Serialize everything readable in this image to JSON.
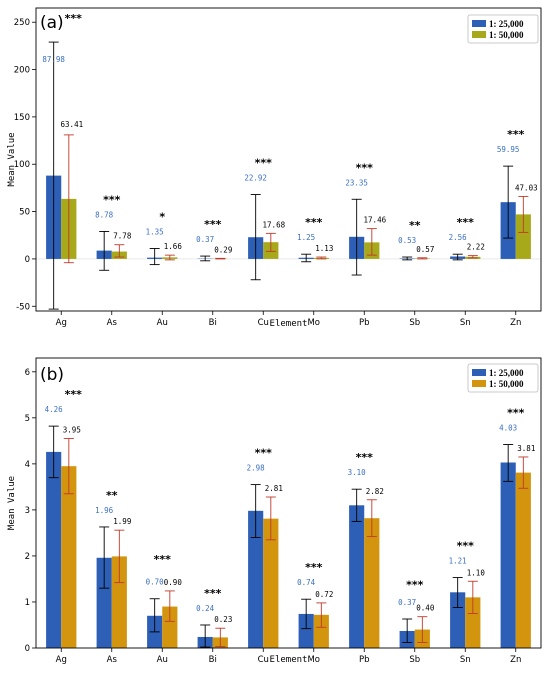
{
  "chart_data": [
    {
      "type": "bar",
      "panel_label": "(a)",
      "categories": [
        "Ag",
        "As",
        "Au",
        "Bi",
        "Cu",
        "Mo",
        "Pb",
        "Sb",
        "Sn",
        "Zn"
      ],
      "xlabel": "Element",
      "ylabel": "Mean Value",
      "ylim": [
        -55,
        265
      ],
      "yticks": [
        -50,
        0,
        50,
        100,
        150,
        200,
        250
      ],
      "series": [
        {
          "name": "1: 25,000",
          "color": "#2c5fb5",
          "values": [
            87.98,
            8.78,
            1.35,
            0.37,
            22.92,
            1.25,
            23.35,
            0.53,
            2.56,
            59.95
          ],
          "err_low": [
            -53,
            -12,
            -6,
            -2,
            -22,
            -3,
            -17,
            -1,
            -1,
            22
          ],
          "err_high": [
            229,
            29,
            11,
            3,
            68,
            5,
            63,
            2,
            5,
            98
          ],
          "labels": [
            "87.98",
            "8.78",
            "1.35",
            "0.37",
            "22.92",
            "1.25",
            "23.35",
            "0.53",
            "2.56",
            "59.95"
          ]
        },
        {
          "name": "1: 50,000",
          "color": "#a7a91a",
          "values": [
            63.41,
            7.78,
            1.66,
            0.29,
            17.68,
            1.13,
            17.46,
            0.57,
            2.22,
            47.03
          ],
          "err_low": [
            -4,
            2,
            -1,
            0,
            8,
            0,
            4,
            0,
            1,
            28
          ],
          "err_high": [
            131,
            15,
            4,
            0.6,
            27,
            2,
            32,
            1.2,
            3.5,
            66
          ],
          "labels": [
            "63.41",
            "7.78",
            "1.66",
            "0.29",
            "17.68",
            "1.13",
            "17.46",
            "0.57",
            "2.22",
            "47.03"
          ]
        }
      ],
      "significance": [
        "***",
        "***",
        "*",
        "***",
        "***",
        "***",
        "***",
        "**",
        "***",
        "***"
      ],
      "legend_position": "top-right"
    },
    {
      "type": "bar",
      "panel_label": "(b)",
      "categories": [
        "Ag",
        "As",
        "Au",
        "Bi",
        "Cu",
        "Mo",
        "Pb",
        "Sb",
        "Sn",
        "Zn"
      ],
      "xlabel": "Element",
      "ylabel": "Mean Value",
      "ylim": [
        0,
        6.3
      ],
      "yticks": [
        0,
        1,
        2,
        3,
        4,
        5,
        6
      ],
      "series": [
        {
          "name": "1: 25,000",
          "color": "#2c5fb5",
          "values": [
            4.26,
            1.96,
            0.7,
            0.24,
            2.98,
            0.74,
            3.1,
            0.37,
            1.21,
            4.03
          ],
          "err_low": [
            3.7,
            1.3,
            0.35,
            0.02,
            2.4,
            0.42,
            2.75,
            0.12,
            0.88,
            3.62
          ],
          "err_high": [
            4.82,
            2.63,
            1.07,
            0.5,
            3.55,
            1.06,
            3.45,
            0.63,
            1.53,
            4.42
          ],
          "labels": [
            "4.26",
            "1.96",
            "0.70",
            "0.24",
            "2.98",
            "0.74",
            "3.10",
            "0.37",
            "1.21",
            "4.03"
          ]
        },
        {
          "name": "1: 50,000",
          "color": "#d3950e",
          "values": [
            3.95,
            1.99,
            0.9,
            0.23,
            2.81,
            0.72,
            2.82,
            0.4,
            1.1,
            3.81
          ],
          "err_low": [
            3.35,
            1.42,
            0.58,
            0.03,
            2.35,
            0.45,
            2.42,
            0.12,
            0.75,
            3.47
          ],
          "err_high": [
            4.55,
            2.56,
            1.24,
            0.43,
            3.28,
            0.98,
            3.22,
            0.68,
            1.45,
            4.15
          ],
          "labels": [
            "3.95",
            "1.99",
            "0.90",
            "0.23",
            "2.81",
            "0.72",
            "2.82",
            "0.40",
            "1.10",
            "3.81"
          ]
        }
      ],
      "significance": [
        "***",
        "**",
        "***",
        "***",
        "***",
        "***",
        "***",
        "***",
        "***",
        "***"
      ],
      "legend_position": "top-right"
    }
  ]
}
